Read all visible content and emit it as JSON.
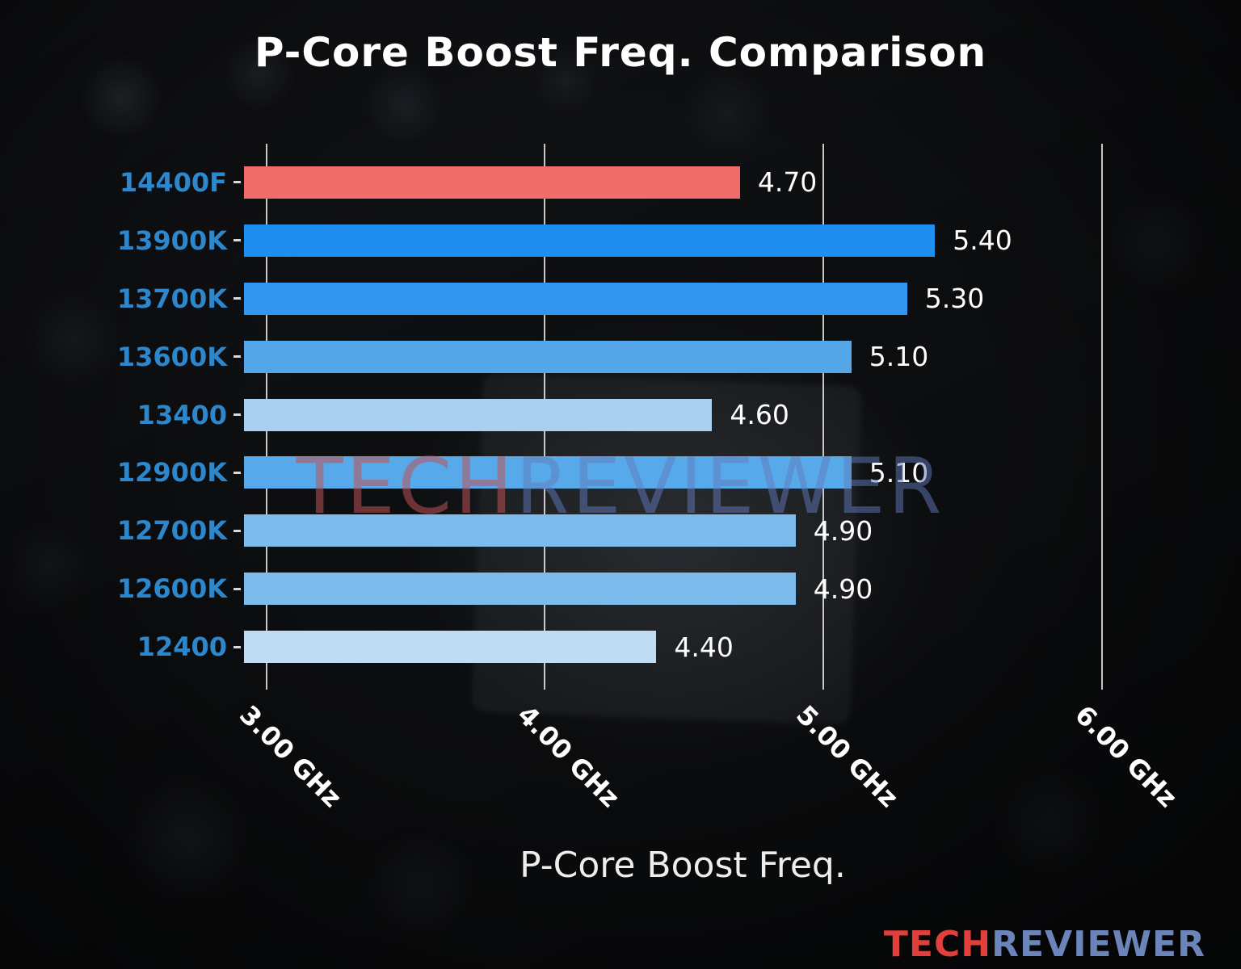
{
  "chart_data": {
    "type": "bar",
    "orientation": "horizontal",
    "title": "P-Core Boost Freq. Comparison",
    "xlabel": "P-Core Boost Freq.",
    "categories": [
      "14400F",
      "13900K",
      "13700K",
      "13600K",
      "13400",
      "12900K",
      "12700K",
      "12600K",
      "12400"
    ],
    "values": [
      4.7,
      5.4,
      5.3,
      5.1,
      4.6,
      5.1,
      4.9,
      4.9,
      4.4
    ],
    "value_labels": [
      "4.70",
      "5.40",
      "5.30",
      "5.10",
      "4.60",
      "5.10",
      "4.90",
      "4.90",
      "4.40"
    ],
    "bar_colors": [
      "#f06e6a",
      "#1e8ff0",
      "#2f97ee",
      "#54a6e9",
      "#a9d0f0",
      "#57a9e9",
      "#7cbcec",
      "#7cbcec",
      "#bfdcf4"
    ],
    "highlight_category": "14400F",
    "x_ticks": [
      {
        "value": 3.0,
        "label": "3.00 GHz"
      },
      {
        "value": 4.0,
        "label": "4.00 GHz"
      },
      {
        "value": 5.0,
        "label": "5.00 GHz"
      },
      {
        "value": 6.0,
        "label": "6.00 GHz"
      }
    ],
    "xlim": [
      2.92,
      6.22
    ],
    "grid": true,
    "ytick_color": "#2d87cc",
    "value_color": "#ffffff",
    "grid_color": "#e8e8e8"
  },
  "watermark": {
    "part1": "TECH",
    "part2": "REVIEWER",
    "color1": "rgba(188,82,88,0.55)",
    "color2": "rgba(98,122,188,0.50)"
  },
  "logo": {
    "part1": "TECH",
    "part2": "REVIEWER",
    "color1": "#e03f3c",
    "color2": "#6b85ba"
  }
}
